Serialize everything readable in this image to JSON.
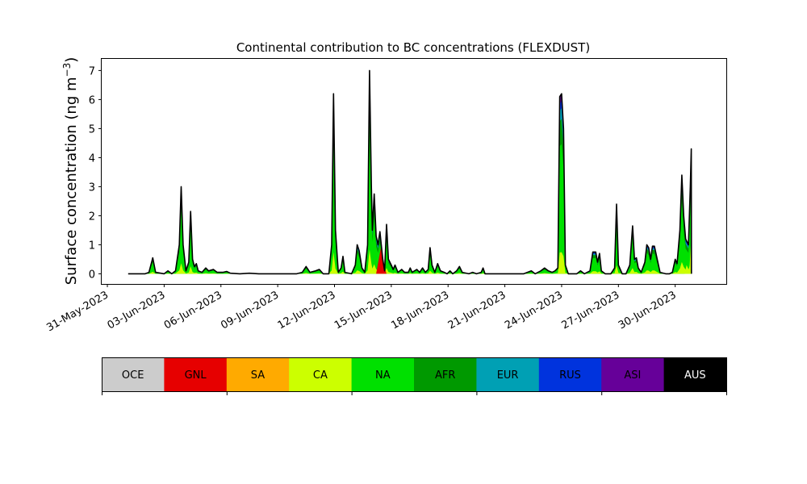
{
  "chart_data": {
    "type": "area",
    "title": "Continental contribution to BC concentrations (FLEXDUST)",
    "ylabel_main": "Surface concentration (ng m",
    "ylabel_sup": "−3",
    "ylabel_close": ")",
    "xlabel": "",
    "stacked": true,
    "ylim": [
      -0.35,
      7.4
    ],
    "yticks": [
      "0",
      "1",
      "2",
      "3",
      "4",
      "5",
      "6",
      "7"
    ],
    "xticks": [
      "31-May-2023",
      "03-Jun-2023",
      "06-Jun-2023",
      "09-Jun-2023",
      "12-Jun-2023",
      "15-Jun-2023",
      "18-Jun-2023",
      "21-Jun-2023",
      "24-Jun-2023",
      "27-Jun-2023",
      "30-Jun-2023"
    ],
    "xlim_days": [
      -0.3,
      32.7
    ],
    "xtick_days": [
      0,
      3,
      6,
      9,
      12,
      15,
      18,
      21,
      24,
      27,
      30
    ],
    "legend": {
      "placement": "below",
      "entries": [
        {
          "label": "OCE",
          "color": "#cccccc",
          "text_color": "#000000"
        },
        {
          "label": "GNL",
          "color": "#e60000",
          "text_color": "#000000"
        },
        {
          "label": "SA",
          "color": "#ffaa00",
          "text_color": "#000000"
        },
        {
          "label": "CA",
          "color": "#ccff00",
          "text_color": "#000000"
        },
        {
          "label": "NA",
          "color": "#00e000",
          "text_color": "#000000"
        },
        {
          "label": "AFR",
          "color": "#009900",
          "text_color": "#000000"
        },
        {
          "label": "EUR",
          "color": "#00a0b4",
          "text_color": "#000000"
        },
        {
          "label": "RUS",
          "color": "#0033dd",
          "text_color": "#000000"
        },
        {
          "label": "ASI",
          "color": "#660099",
          "text_color": "#000000"
        },
        {
          "label": "AUS",
          "color": "#000000",
          "text_color": "#ffffff"
        }
      ]
    },
    "total_line_color": "#000000",
    "total_peaks": [
      [
        1.1,
        0
      ],
      [
        2.0,
        0
      ],
      [
        2.2,
        0.05
      ],
      [
        2.4,
        0.55
      ],
      [
        2.55,
        0.05
      ],
      [
        3.0,
        0
      ],
      [
        3.2,
        0.1
      ],
      [
        3.4,
        0
      ],
      [
        3.6,
        0.1
      ],
      [
        3.8,
        1.0
      ],
      [
        3.9,
        3.0
      ],
      [
        4.0,
        1.0
      ],
      [
        4.15,
        0.1
      ],
      [
        4.3,
        0.4
      ],
      [
        4.4,
        2.15
      ],
      [
        4.5,
        0.5
      ],
      [
        4.6,
        0.25
      ],
      [
        4.7,
        0.35
      ],
      [
        4.8,
        0.1
      ],
      [
        5.0,
        0.05
      ],
      [
        5.2,
        0.2
      ],
      [
        5.35,
        0.1
      ],
      [
        5.6,
        0.15
      ],
      [
        5.8,
        0.05
      ],
      [
        6.1,
        0.05
      ],
      [
        6.3,
        0.08
      ],
      [
        6.5,
        0.02
      ],
      [
        7.0,
        0
      ],
      [
        7.5,
        0.02
      ],
      [
        8.0,
        0
      ],
      [
        9.0,
        0
      ],
      [
        10.0,
        0
      ],
      [
        10.3,
        0.05
      ],
      [
        10.5,
        0.25
      ],
      [
        10.7,
        0.05
      ],
      [
        11.0,
        0.1
      ],
      [
        11.2,
        0.15
      ],
      [
        11.4,
        0
      ],
      [
        11.7,
        0
      ],
      [
        11.85,
        1.0
      ],
      [
        11.95,
        6.2
      ],
      [
        12.05,
        1.5
      ],
      [
        12.2,
        0.05
      ],
      [
        12.35,
        0.2
      ],
      [
        12.45,
        0.6
      ],
      [
        12.55,
        0.05
      ],
      [
        12.9,
        0
      ],
      [
        13.1,
        0.3
      ],
      [
        13.2,
        1.0
      ],
      [
        13.3,
        0.8
      ],
      [
        13.45,
        0.2
      ],
      [
        13.6,
        0.05
      ],
      [
        13.75,
        1.0
      ],
      [
        13.85,
        7.0
      ],
      [
        13.95,
        3.0
      ],
      [
        14.0,
        1.5
      ],
      [
        14.1,
        2.75
      ],
      [
        14.2,
        1.3
      ],
      [
        14.3,
        1.0
      ],
      [
        14.4,
        1.45
      ],
      [
        14.55,
        0.5
      ],
      [
        14.65,
        0.1
      ],
      [
        14.75,
        1.7
      ],
      [
        14.85,
        0.5
      ],
      [
        15.0,
        0.3
      ],
      [
        15.1,
        0.15
      ],
      [
        15.2,
        0.3
      ],
      [
        15.35,
        0.05
      ],
      [
        15.55,
        0.15
      ],
      [
        15.7,
        0.05
      ],
      [
        15.9,
        0.05
      ],
      [
        16.0,
        0.2
      ],
      [
        16.1,
        0.05
      ],
      [
        16.35,
        0.15
      ],
      [
        16.5,
        0.05
      ],
      [
        16.65,
        0.2
      ],
      [
        16.8,
        0.05
      ],
      [
        16.95,
        0.15
      ],
      [
        17.05,
        0.9
      ],
      [
        17.15,
        0.3
      ],
      [
        17.3,
        0.05
      ],
      [
        17.45,
        0.35
      ],
      [
        17.6,
        0.1
      ],
      [
        17.8,
        0.05
      ],
      [
        17.95,
        0
      ],
      [
        18.1,
        0.1
      ],
      [
        18.25,
        0
      ],
      [
        18.45,
        0.1
      ],
      [
        18.6,
        0.25
      ],
      [
        18.75,
        0.05
      ],
      [
        19.1,
        0
      ],
      [
        19.3,
        0.05
      ],
      [
        19.5,
        0
      ],
      [
        19.75,
        0.05
      ],
      [
        19.85,
        0.2
      ],
      [
        19.95,
        0
      ],
      [
        21.0,
        0
      ],
      [
        22.0,
        0
      ],
      [
        22.4,
        0.1
      ],
      [
        22.6,
        0
      ],
      [
        22.9,
        0.1
      ],
      [
        23.1,
        0.2
      ],
      [
        23.3,
        0.1
      ],
      [
        23.5,
        0.05
      ],
      [
        23.65,
        0.1
      ],
      [
        23.8,
        0.2
      ],
      [
        23.9,
        6.1
      ],
      [
        24.0,
        6.2
      ],
      [
        24.1,
        5.0
      ],
      [
        24.2,
        0.3
      ],
      [
        24.35,
        0
      ],
      [
        24.8,
        0
      ],
      [
        25.0,
        0.1
      ],
      [
        25.2,
        0
      ],
      [
        25.5,
        0.1
      ],
      [
        25.65,
        0.75
      ],
      [
        25.8,
        0.75
      ],
      [
        25.9,
        0.4
      ],
      [
        26.0,
        0.7
      ],
      [
        26.1,
        0.1
      ],
      [
        26.3,
        0
      ],
      [
        26.6,
        0
      ],
      [
        26.8,
        0.2
      ],
      [
        26.9,
        2.4
      ],
      [
        27.0,
        0.3
      ],
      [
        27.2,
        0
      ],
      [
        27.4,
        0
      ],
      [
        27.6,
        0.3
      ],
      [
        27.75,
        1.65
      ],
      [
        27.85,
        0.5
      ],
      [
        27.95,
        0.55
      ],
      [
        28.05,
        0.2
      ],
      [
        28.2,
        0.05
      ],
      [
        28.4,
        0.4
      ],
      [
        28.5,
        1.0
      ],
      [
        28.6,
        0.9
      ],
      [
        28.7,
        0.5
      ],
      [
        28.8,
        0.95
      ],
      [
        28.9,
        0.95
      ],
      [
        29.05,
        0.5
      ],
      [
        29.2,
        0.05
      ],
      [
        29.5,
        0
      ],
      [
        29.7,
        0
      ],
      [
        29.85,
        0.05
      ],
      [
        30.0,
        0.5
      ],
      [
        30.1,
        0.35
      ],
      [
        30.25,
        1.5
      ],
      [
        30.35,
        3.4
      ],
      [
        30.45,
        2.0
      ],
      [
        30.55,
        1.2
      ],
      [
        30.7,
        1.0
      ],
      [
        30.8,
        3.0
      ],
      [
        30.85,
        4.3
      ],
      [
        30.86,
        0
      ]
    ]
  }
}
